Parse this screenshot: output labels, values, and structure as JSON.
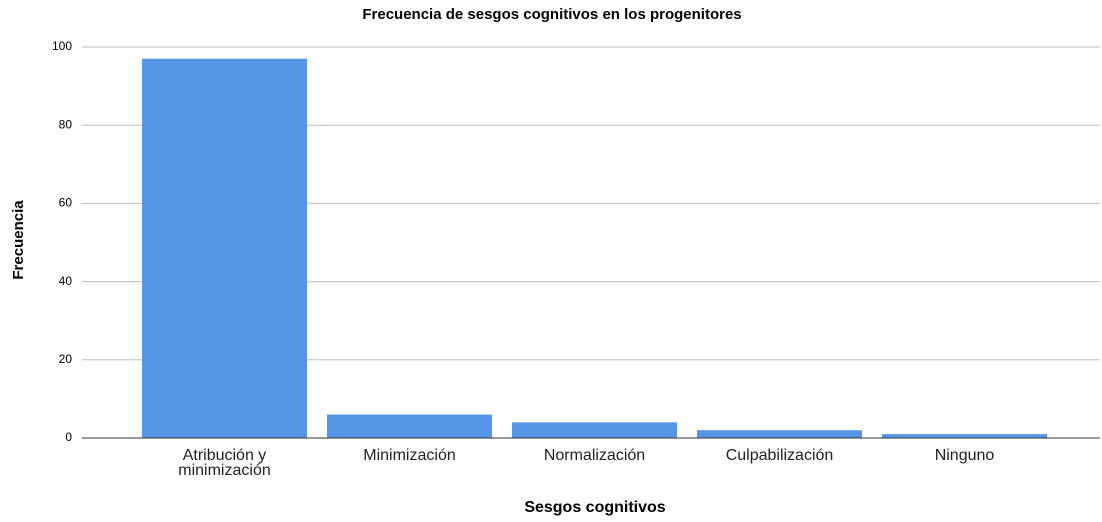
{
  "chart_data": {
    "type": "bar",
    "title": "Frecuencia de sesgos cognitivos en los progenitores",
    "x_label": "Sesgos cognitivos",
    "y_label": "Frecuencia",
    "categories": [
      "Atribución y minimización",
      "Minimización",
      "Normalización",
      "Culpabilización",
      "Ninguno"
    ],
    "values": [
      97,
      6,
      4,
      2,
      1
    ],
    "color": "#5596e6",
    "ylim": [
      0,
      100
    ],
    "yticks": [
      0,
      20,
      40,
      60,
      80,
      100
    ],
    "grid": true
  }
}
